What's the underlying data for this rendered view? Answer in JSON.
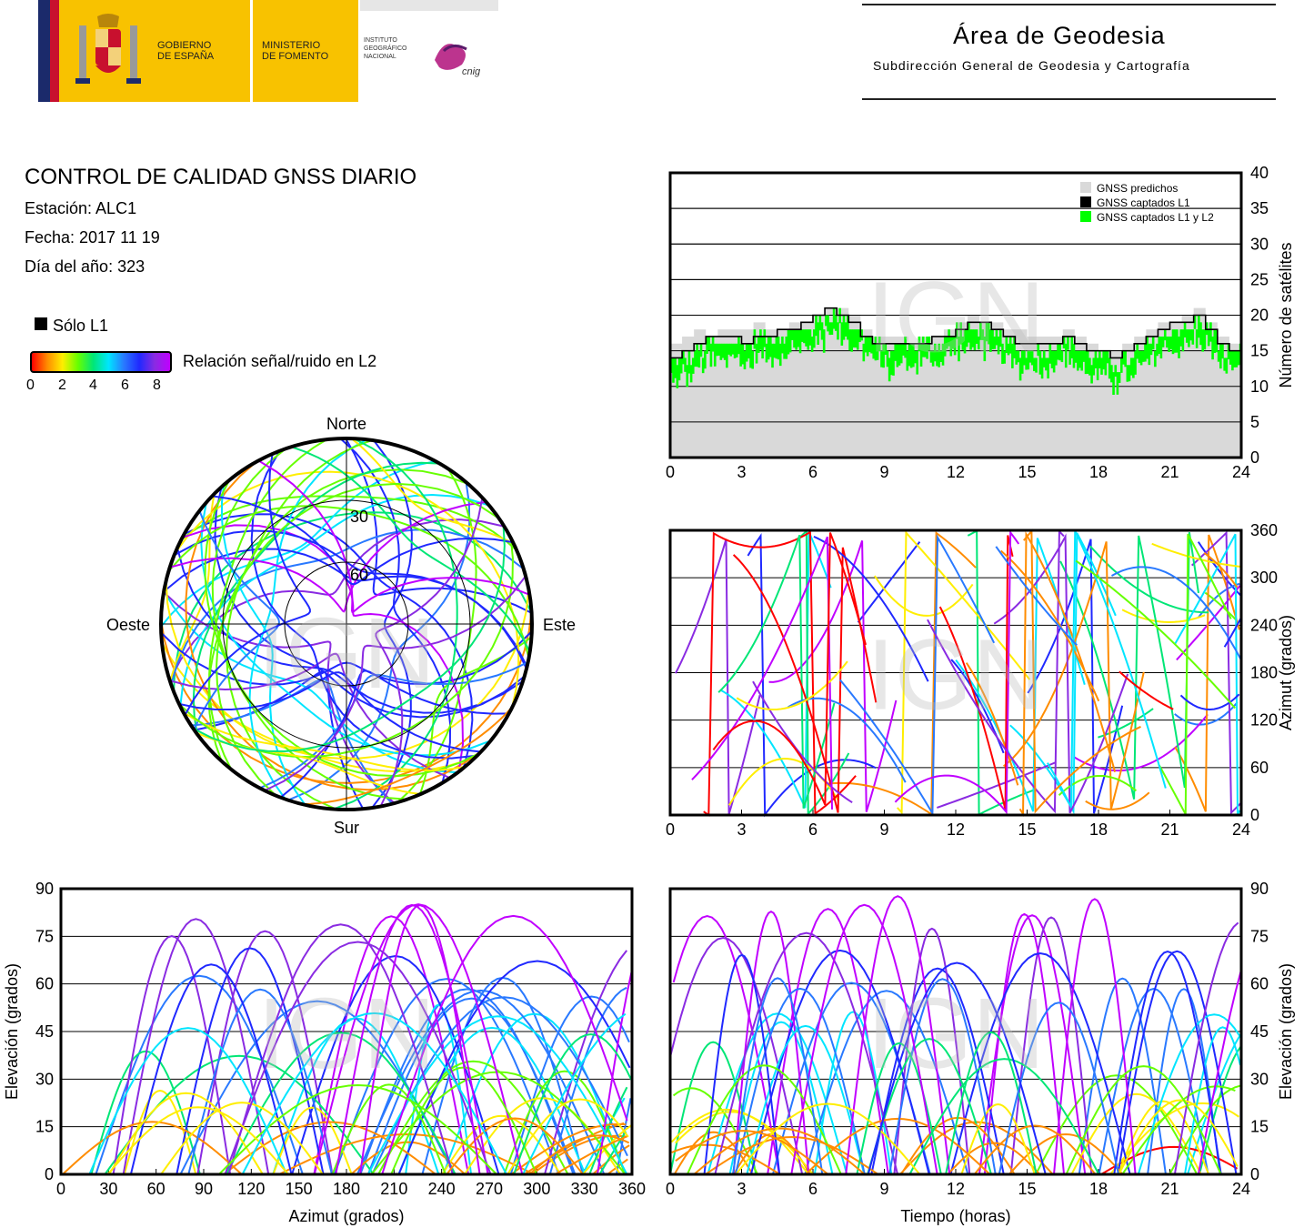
{
  "header": {
    "gov_line1": "GOBIERNO",
    "gov_line2": "DE ESPAÑA",
    "min_line1": "MINISTERIO",
    "min_line2": "DE FOMENTO",
    "ign_line1": "INSTITUTO",
    "ign_line2": "GEOGRÁFICO",
    "ign_line3": "NACIONAL",
    "cnig": "cnig",
    "area_title": "Área de Geodesia",
    "area_subtitle": "Subdirección General de Geodesia y Cartografía"
  },
  "info": {
    "title": "CONTROL DE CALIDAD GNSS DIARIO",
    "station": "Estación: ALC1",
    "date": "Fecha: 2017 11 19",
    "doy": "Día del año: 323",
    "legend_l1": "Sólo L1",
    "legend_snr": "Relación señal/ruido en L2",
    "snr_ticks": [
      "0",
      "2",
      "4",
      "6",
      "8"
    ]
  },
  "colors": {
    "predicted": "#d9d9d9",
    "l1": "#000000",
    "l1l2": "#00ff00",
    "snr_scale": [
      "#ff0000",
      "#ff8c00",
      "#ffee00",
      "#66ff00",
      "#00e676",
      "#00e5ff",
      "#2979ff",
      "#2029ff",
      "#8a2be2",
      "#c000ff"
    ]
  },
  "watermark": "IGN",
  "chart_data": [
    {
      "id": "satellites",
      "type": "area",
      "x": [
        0,
        0.5,
        1,
        1.5,
        2,
        2.5,
        3,
        3.5,
        4,
        4.5,
        5,
        5.5,
        6,
        6.5,
        7,
        7.5,
        8,
        8.5,
        9,
        9.5,
        10,
        10.5,
        11,
        11.5,
        12,
        12.5,
        13,
        13.5,
        14,
        14.5,
        15,
        15.5,
        16,
        16.5,
        17,
        17.5,
        18,
        18.5,
        19,
        19.5,
        20,
        20.5,
        21,
        21.5,
        22,
        22.5,
        23,
        23.5,
        24
      ],
      "series": [
        {
          "name": "GNSS predichos",
          "values": [
            16,
            17,
            18,
            17,
            18,
            18,
            18,
            19,
            18,
            18,
            19,
            19,
            20,
            21,
            21,
            20,
            18,
            17,
            17,
            17,
            16,
            17,
            17,
            18,
            19,
            20,
            19,
            19,
            18,
            18,
            17,
            17,
            17,
            18,
            17,
            16,
            15,
            15,
            16,
            17,
            18,
            19,
            19,
            20,
            21,
            19,
            17,
            16,
            16
          ]
        },
        {
          "name": "GNSS captados L1",
          "values": [
            14,
            15,
            16,
            17,
            17,
            17,
            16,
            17,
            17,
            18,
            18,
            19,
            20,
            21,
            20,
            19,
            17,
            16,
            16,
            16,
            16,
            16,
            17,
            17,
            18,
            19,
            19,
            18,
            17,
            16,
            16,
            16,
            16,
            17,
            16,
            15,
            15,
            14,
            15,
            16,
            17,
            18,
            19,
            19,
            20,
            18,
            16,
            15,
            15
          ]
        },
        {
          "name": "GNSS captados L1 y L2",
          "values": [
            14,
            14,
            15,
            16,
            16,
            16,
            16,
            17,
            17,
            17,
            18,
            18,
            19,
            20,
            20,
            18,
            17,
            16,
            15,
            16,
            16,
            16,
            16,
            17,
            18,
            18,
            18,
            17,
            16,
            15,
            15,
            15,
            16,
            16,
            15,
            14,
            14,
            13,
            14,
            15,
            16,
            17,
            18,
            18,
            19,
            18,
            15,
            15,
            15
          ]
        }
      ],
      "xlim": [
        0,
        24
      ],
      "ylim": [
        0,
        40
      ],
      "xticks": [
        "0",
        "3",
        "6",
        "9",
        "12",
        "15",
        "18",
        "21",
        "24"
      ],
      "yticks": [
        "0",
        "5",
        "10",
        "15",
        "20",
        "25",
        "30",
        "35",
        "40"
      ],
      "ylabel": "Número de satélites",
      "legend_position": "top-right",
      "grid": true
    },
    {
      "id": "skyplot",
      "type": "scatter",
      "directions": {
        "north": "Norte",
        "south": "Sur",
        "east": "Este",
        "west": "Oeste"
      },
      "elevation_rings": [
        "30",
        "60"
      ]
    },
    {
      "id": "azimuth_time",
      "type": "scatter",
      "xlim": [
        0,
        24
      ],
      "ylim": [
        0,
        360
      ],
      "xticks": [
        "0",
        "3",
        "6",
        "9",
        "12",
        "15",
        "18",
        "21",
        "24"
      ],
      "yticks": [
        "0",
        "60",
        "120",
        "180",
        "240",
        "300",
        "360"
      ],
      "ylabel": "Azimut (grados)",
      "grid": true
    },
    {
      "id": "elev_azimuth",
      "type": "scatter",
      "xlim": [
        0,
        360
      ],
      "ylim": [
        0,
        90
      ],
      "xticks": [
        "0",
        "30",
        "60",
        "90",
        "120",
        "150",
        "180",
        "210",
        "240",
        "270",
        "300",
        "330",
        "360"
      ],
      "yticks": [
        "0",
        "15",
        "30",
        "45",
        "60",
        "75",
        "90"
      ],
      "xlabel": "Azimut (grados)",
      "ylabel": "Elevación (grados)",
      "grid": true
    },
    {
      "id": "elev_time",
      "type": "scatter",
      "xlim": [
        0,
        24
      ],
      "ylim": [
        0,
        90
      ],
      "xticks": [
        "0",
        "3",
        "6",
        "9",
        "12",
        "15",
        "18",
        "21",
        "24"
      ],
      "yticks": [
        "0",
        "15",
        "30",
        "45",
        "60",
        "75",
        "90"
      ],
      "xlabel": "Tiempo (horas)",
      "ylabel": "Elevación (grados)",
      "grid": true
    }
  ]
}
